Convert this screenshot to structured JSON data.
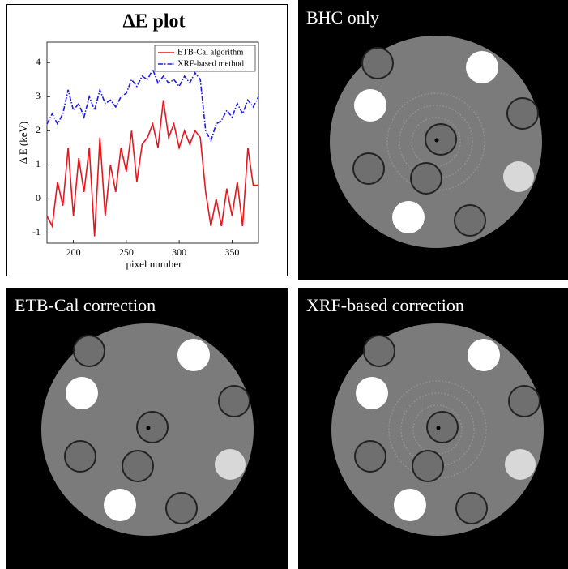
{
  "chart_data": {
    "type": "line",
    "title": "ΔE plot",
    "x_label": "pixel number",
    "y_label": "Δ E (keV)",
    "x": [
      175,
      180,
      185,
      190,
      195,
      200,
      205,
      210,
      215,
      220,
      225,
      230,
      235,
      240,
      245,
      250,
      255,
      260,
      265,
      270,
      275,
      280,
      285,
      290,
      295,
      300,
      305,
      310,
      315,
      320,
      325,
      330,
      335,
      340,
      345,
      350,
      355,
      360,
      365,
      370,
      375
    ],
    "series": [
      {
        "name": "ETB-Cal algorithm",
        "color": "#e8171b",
        "style": "solid",
        "values": [
          -0.5,
          -0.8,
          0.5,
          -0.2,
          1.5,
          -0.5,
          1.2,
          0.2,
          1.5,
          -1.1,
          1.8,
          -0.5,
          1.0,
          0.2,
          1.5,
          0.8,
          2.0,
          0.5,
          1.6,
          1.8,
          2.2,
          1.5,
          2.9,
          1.8,
          2.2,
          1.5,
          2.0,
          1.6,
          2.0,
          1.8,
          0.2,
          -0.8,
          0.0,
          -0.8,
          0.3,
          -0.5,
          0.5,
          -0.8,
          1.5,
          0.4,
          0.4
        ]
      },
      {
        "name": "XRF-based method",
        "color": "#1a1aeb",
        "style": "dash-dot",
        "values": [
          2.2,
          2.5,
          2.2,
          2.5,
          3.2,
          2.6,
          2.8,
          2.4,
          3.0,
          2.6,
          3.2,
          2.8,
          2.9,
          2.7,
          3.0,
          3.1,
          3.5,
          3.3,
          3.6,
          3.5,
          3.8,
          3.4,
          3.6,
          3.4,
          3.5,
          3.3,
          3.6,
          3.4,
          3.7,
          3.5,
          2.0,
          1.7,
          2.2,
          2.3,
          2.6,
          2.4,
          2.8,
          2.5,
          2.9,
          2.7,
          3.0
        ]
      }
    ],
    "xlim": [
      175,
      375
    ],
    "xticks": [
      200,
      250,
      300,
      350
    ],
    "ylim": [
      -1.3,
      4.6
    ],
    "yticks": [
      -1,
      0,
      1,
      2,
      3,
      4
    ],
    "legend": "upper right"
  },
  "panels": [
    {
      "label": "BHC only"
    },
    {
      "label": "ETB-Cal correction"
    },
    {
      "label": "XRF-based correction"
    }
  ]
}
